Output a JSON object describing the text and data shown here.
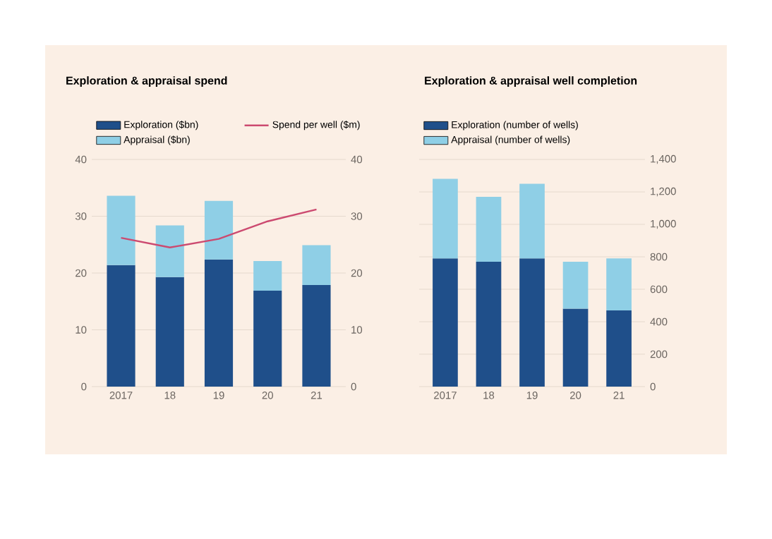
{
  "chart_data": [
    {
      "type": "bar",
      "title": "Exploration & appraisal spend",
      "stacked": true,
      "categories": [
        "2017",
        "18",
        "19",
        "20",
        "21"
      ],
      "series": [
        {
          "name": "Exploration ($bn)",
          "color": "#1f4f8a",
          "values": [
            21.4,
            19.3,
            22.4,
            16.9,
            17.9
          ]
        },
        {
          "name": "Appraisal ($bn)",
          "color": "#8fcfe6",
          "values": [
            12.2,
            9.1,
            10.3,
            5.2,
            7.0
          ]
        },
        {
          "name": "Spend per well ($m)",
          "type": "line",
          "axis": "y2",
          "color": "#cc4a70",
          "values": [
            26.2,
            24.5,
            26.0,
            29.1,
            31.2
          ]
        }
      ],
      "ylim": [
        0,
        40
      ],
      "yticks": [
        0,
        10,
        20,
        30,
        40
      ],
      "y2lim": [
        0,
        40
      ],
      "y2ticks": [
        0,
        10,
        20,
        30,
        40
      ],
      "grid": "y",
      "legend": "top"
    },
    {
      "type": "bar",
      "title": "Exploration & appraisal well completion",
      "stacked": true,
      "categories": [
        "2017",
        "18",
        "19",
        "20",
        "21"
      ],
      "series": [
        {
          "name": "Exploration (number of wells)",
          "color": "#1f4f8a",
          "values": [
            790,
            770,
            790,
            480,
            470
          ]
        },
        {
          "name": "Appraisal (number of wells)",
          "color": "#8fcfe6",
          "values": [
            490,
            400,
            460,
            290,
            320
          ]
        }
      ],
      "ylim": [
        0,
        1400
      ],
      "yticks": [
        0,
        200,
        400,
        600,
        800,
        {
          "value": 1000,
          "label": "1,000"
        },
        {
          "value": 1200,
          "label": "1,200"
        },
        {
          "value": 1400,
          "label": "1,400"
        }
      ],
      "grid": "y",
      "legend": "top"
    }
  ]
}
